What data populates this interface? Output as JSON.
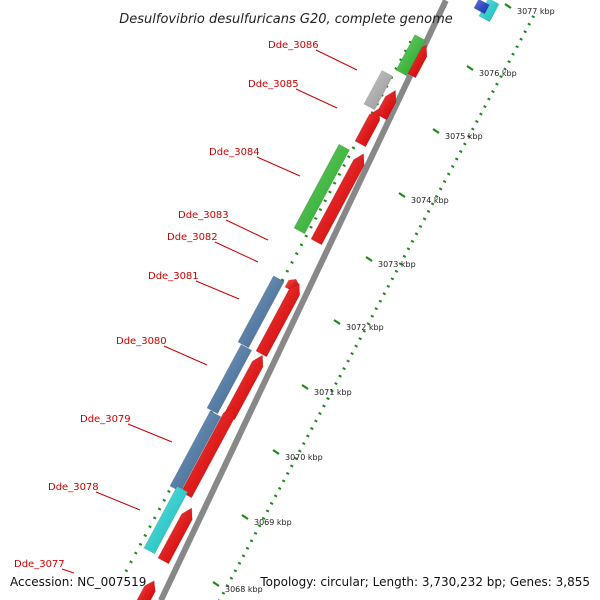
{
  "title": "Desulfovibrio desulfuricans G20, complete genome",
  "footer": {
    "accession": "Accession: NC_007519",
    "topology": "Topology: circular; Length: 3,730,232 bp; Genes: 3,855"
  },
  "colors": {
    "backbone": "#888888",
    "minor_tick": "#1a8c1a",
    "gene_label": "#cc0000",
    "cds_strand": "#ff0000",
    "cog_green": "#33cc33",
    "cog_steelblue": "#4d7fb3",
    "cog_cyan": "#22e6e6",
    "cog_gray": "#bdbdbd",
    "cog_blue": "#1f3fd6"
  },
  "gene_labels": [
    "Dde_3086",
    "Dde_3085",
    "Dde_3084",
    "Dde_3083",
    "Dde_3082",
    "Dde_3081",
    "Dde_3080",
    "Dde_3079",
    "Dde_3078",
    "Dde_3077"
  ],
  "tick_labels": [
    "3077 kbp",
    "3076 kbp",
    "3075 kbp",
    "3074 kbp",
    "3073 kbp",
    "3072 kbp",
    "3071 kbp",
    "3070 kbp",
    "3069 kbp",
    "3068 kbp"
  ]
}
